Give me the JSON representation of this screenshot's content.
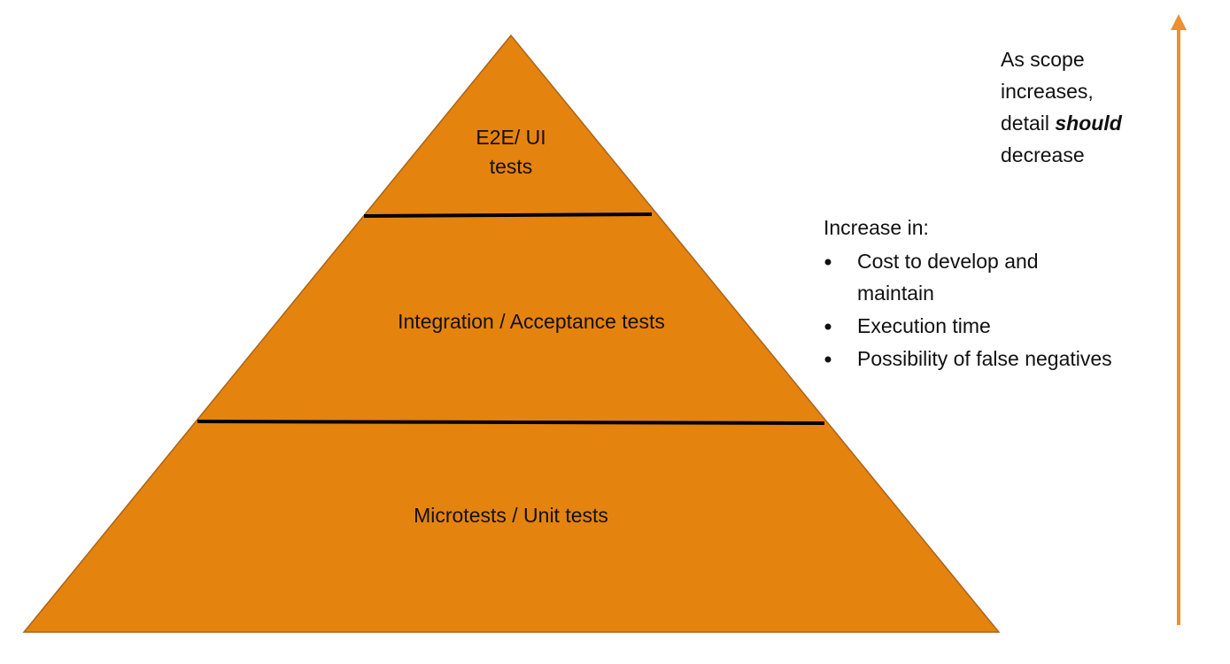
{
  "pyramid": {
    "layers": [
      {
        "lines": [
          "E2E/ UI",
          "tests"
        ]
      },
      {
        "lines": [
          "Integration / Acceptance tests"
        ]
      },
      {
        "lines": [
          "Microtests / Unit tests"
        ]
      }
    ]
  },
  "scope_note": {
    "lines": [
      "As scope",
      "increases,"
    ],
    "prefix": "detail",
    "emphasis": "should",
    "suffix": "decrease"
  },
  "increase": {
    "heading": "Increase in:",
    "items": [
      {
        "lines": [
          "Cost to develop and",
          "maintain"
        ]
      },
      {
        "lines": [
          "Execution time"
        ]
      },
      {
        "lines": [
          "Possibility of false negatives"
        ]
      }
    ]
  }
}
